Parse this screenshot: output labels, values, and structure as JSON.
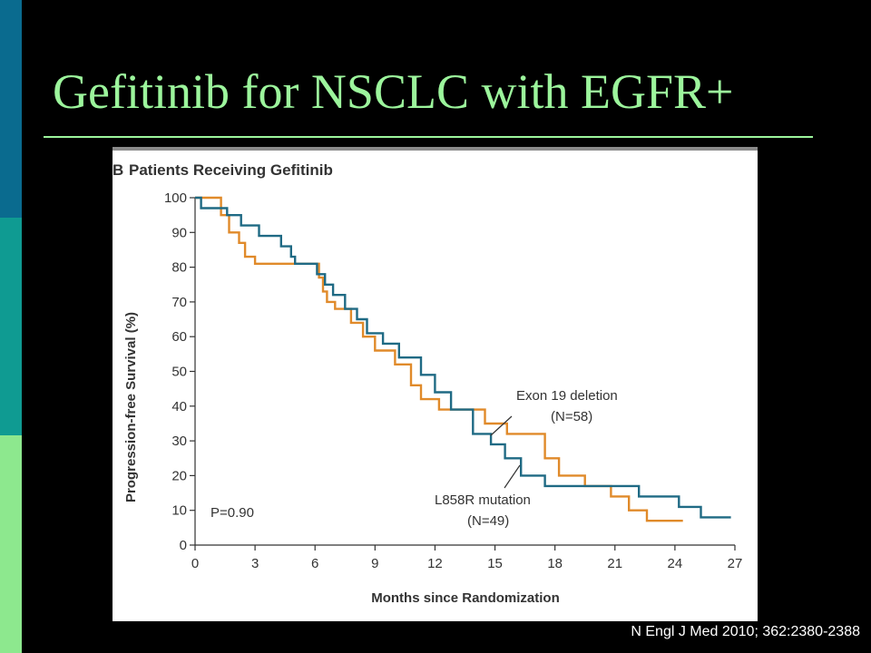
{
  "slide": {
    "title": "Gefitinib for NSCLC with EGFR+",
    "citation": "N Engl J Med 2010; 362:2380-2388"
  },
  "colors": {
    "background": "#000000",
    "title": "#9cf59c",
    "exon19": "#e08a2a",
    "l858r": "#1f6a84"
  },
  "chart_data": {
    "type": "line",
    "panel_letter": "B",
    "title": "Patients Receiving Gefitinib",
    "xlabel": "Months since Randomization",
    "ylabel": "Progression-free Survival (%)",
    "xlim": [
      0,
      27
    ],
    "ylim": [
      0,
      100
    ],
    "x_ticks": [
      0,
      3,
      6,
      9,
      12,
      15,
      18,
      21,
      24,
      27
    ],
    "y_ticks": [
      0,
      10,
      20,
      30,
      40,
      50,
      60,
      70,
      80,
      90,
      100
    ],
    "grid": false,
    "p_value": "P=0.90",
    "series": [
      {
        "name": "Exon 19 deletion",
        "n_label": "(N=58)",
        "color": "#e08a2a",
        "x": [
          0,
          1.3,
          1.3,
          1.7,
          1.7,
          2.2,
          2.2,
          2.5,
          2.5,
          3.0,
          3.0,
          6.2,
          6.2,
          6.4,
          6.4,
          6.6,
          6.6,
          7.0,
          7.0,
          7.8,
          7.8,
          8.4,
          8.4,
          9.0,
          9.0,
          10.0,
          10.0,
          10.8,
          10.8,
          11.3,
          11.3,
          12.2,
          12.2,
          13.3,
          13.3,
          14.5,
          14.5,
          15.6,
          15.6,
          17.5,
          17.5,
          18.2,
          18.2,
          19.5,
          19.5,
          20.8,
          20.8,
          21.7,
          21.7,
          22.6,
          22.6,
          24.4
        ],
        "y": [
          100,
          100,
          95,
          95,
          90,
          90,
          87,
          87,
          83,
          83,
          81,
          81,
          77,
          77,
          73,
          73,
          70,
          70,
          68,
          68,
          64,
          64,
          60,
          60,
          56,
          56,
          52,
          52,
          46,
          46,
          42,
          42,
          39,
          39,
          39,
          39,
          35,
          35,
          32,
          32,
          25,
          25,
          20,
          20,
          17,
          17,
          14,
          14,
          10,
          10,
          7,
          7
        ]
      },
      {
        "name": "L858R mutation",
        "n_label": "(N=49)",
        "color": "#1f6a84",
        "x": [
          0,
          0.3,
          0.3,
          1.6,
          1.6,
          2.3,
          2.3,
          3.2,
          3.2,
          4.3,
          4.3,
          4.8,
          4.8,
          5.0,
          5.0,
          6.1,
          6.1,
          6.5,
          6.5,
          6.9,
          6.9,
          7.5,
          7.5,
          8.1,
          8.1,
          8.6,
          8.6,
          9.4,
          9.4,
          10.2,
          10.2,
          11.3,
          11.3,
          12.0,
          12.0,
          12.8,
          12.8,
          13.9,
          13.9,
          14.8,
          14.8,
          15.5,
          15.5,
          16.3,
          16.3,
          17.5,
          17.5,
          22.2,
          22.2,
          24.2,
          24.2,
          25.3,
          25.3,
          26.8
        ],
        "y": [
          100,
          100,
          97,
          97,
          95,
          95,
          92,
          92,
          89,
          89,
          86,
          86,
          83,
          83,
          81,
          81,
          78,
          78,
          75,
          75,
          72,
          72,
          68,
          68,
          65,
          65,
          61,
          61,
          58,
          58,
          54,
          54,
          49,
          49,
          44,
          44,
          39,
          39,
          32,
          32,
          29,
          29,
          25,
          25,
          20,
          20,
          17,
          17,
          14,
          14,
          11,
          11,
          8,
          8
        ]
      }
    ]
  }
}
